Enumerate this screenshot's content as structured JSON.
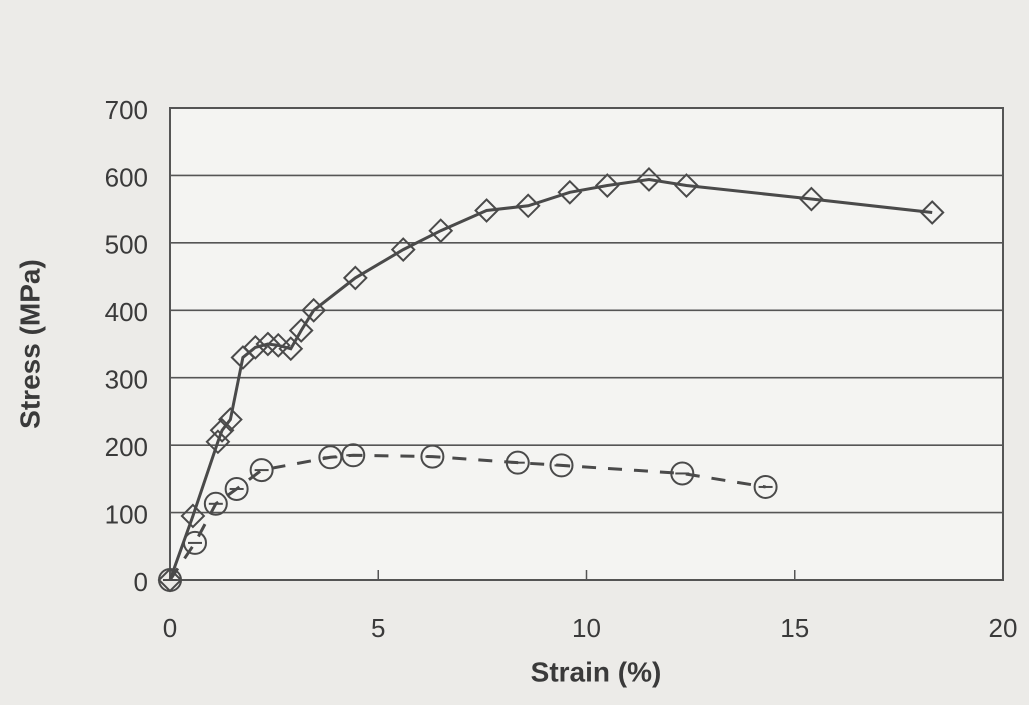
{
  "chart_data": {
    "type": "line",
    "x_label": "Strain (%)",
    "y_label": "Stress (MPa)",
    "xlim": [
      0,
      20
    ],
    "xticks": [
      0,
      5,
      10,
      15,
      20
    ],
    "ylim": [
      0,
      700
    ],
    "yticks": [
      0,
      100,
      200,
      300,
      400,
      500,
      600,
      700
    ],
    "grid": true,
    "series": [
      {
        "color": "#4a4a4a",
        "marker": "diamond",
        "dashed": false,
        "x": [
          0,
          0.55,
          1.15,
          1.25,
          1.45,
          1.75,
          2.05,
          2.35,
          2.6,
          2.9,
          3.15,
          3.45,
          4.45,
          5.6,
          6.5,
          7.6,
          8.6,
          9.6,
          10.5,
          11.5,
          12.4,
          15.4,
          18.3
        ],
        "values": [
          0,
          95,
          205,
          222,
          238,
          330,
          345,
          350,
          348,
          343,
          370,
          400,
          448,
          490,
          518,
          548,
          555,
          575,
          585,
          594,
          585,
          565,
          545
        ]
      },
      {
        "color": "#4a4a4a",
        "marker": "circle",
        "dashed": true,
        "x": [
          0,
          0.6,
          1.1,
          1.6,
          2.2,
          3.85,
          4.4,
          6.3,
          8.35,
          9.4,
          12.3,
          14.3
        ],
        "values": [
          0,
          55,
          113,
          135,
          163,
          182,
          185,
          183,
          174,
          170,
          158,
          138
        ]
      }
    ]
  }
}
